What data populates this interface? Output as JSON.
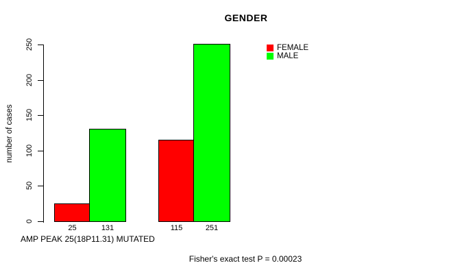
{
  "chart_data": {
    "type": "bar",
    "title": "GENDER",
    "ylabel": "number of cases",
    "xlabel": "",
    "caption": "AMP PEAK 25(18P11.31) MUTATED",
    "annotation": "Fisher's exact test P = 0.00023",
    "yticks": [
      0,
      50,
      100,
      150,
      200,
      250
    ],
    "ylim": [
      0,
      260
    ],
    "grid": false,
    "legend_position": "top-right",
    "categories": [
      "",
      ""
    ],
    "series": [
      {
        "name": "FEMALE",
        "color": "#ff0000",
        "values": [
          25,
          115
        ]
      },
      {
        "name": "MALE",
        "color": "#00ff00",
        "values": [
          131,
          251
        ]
      }
    ],
    "bar_labels": [
      [
        "25",
        "131"
      ],
      [
        "115",
        "251"
      ]
    ]
  },
  "legend": {
    "items": [
      {
        "label": "FEMALE",
        "color": "#ff0000"
      },
      {
        "label": "MALE",
        "color": "#00ff00"
      }
    ]
  }
}
